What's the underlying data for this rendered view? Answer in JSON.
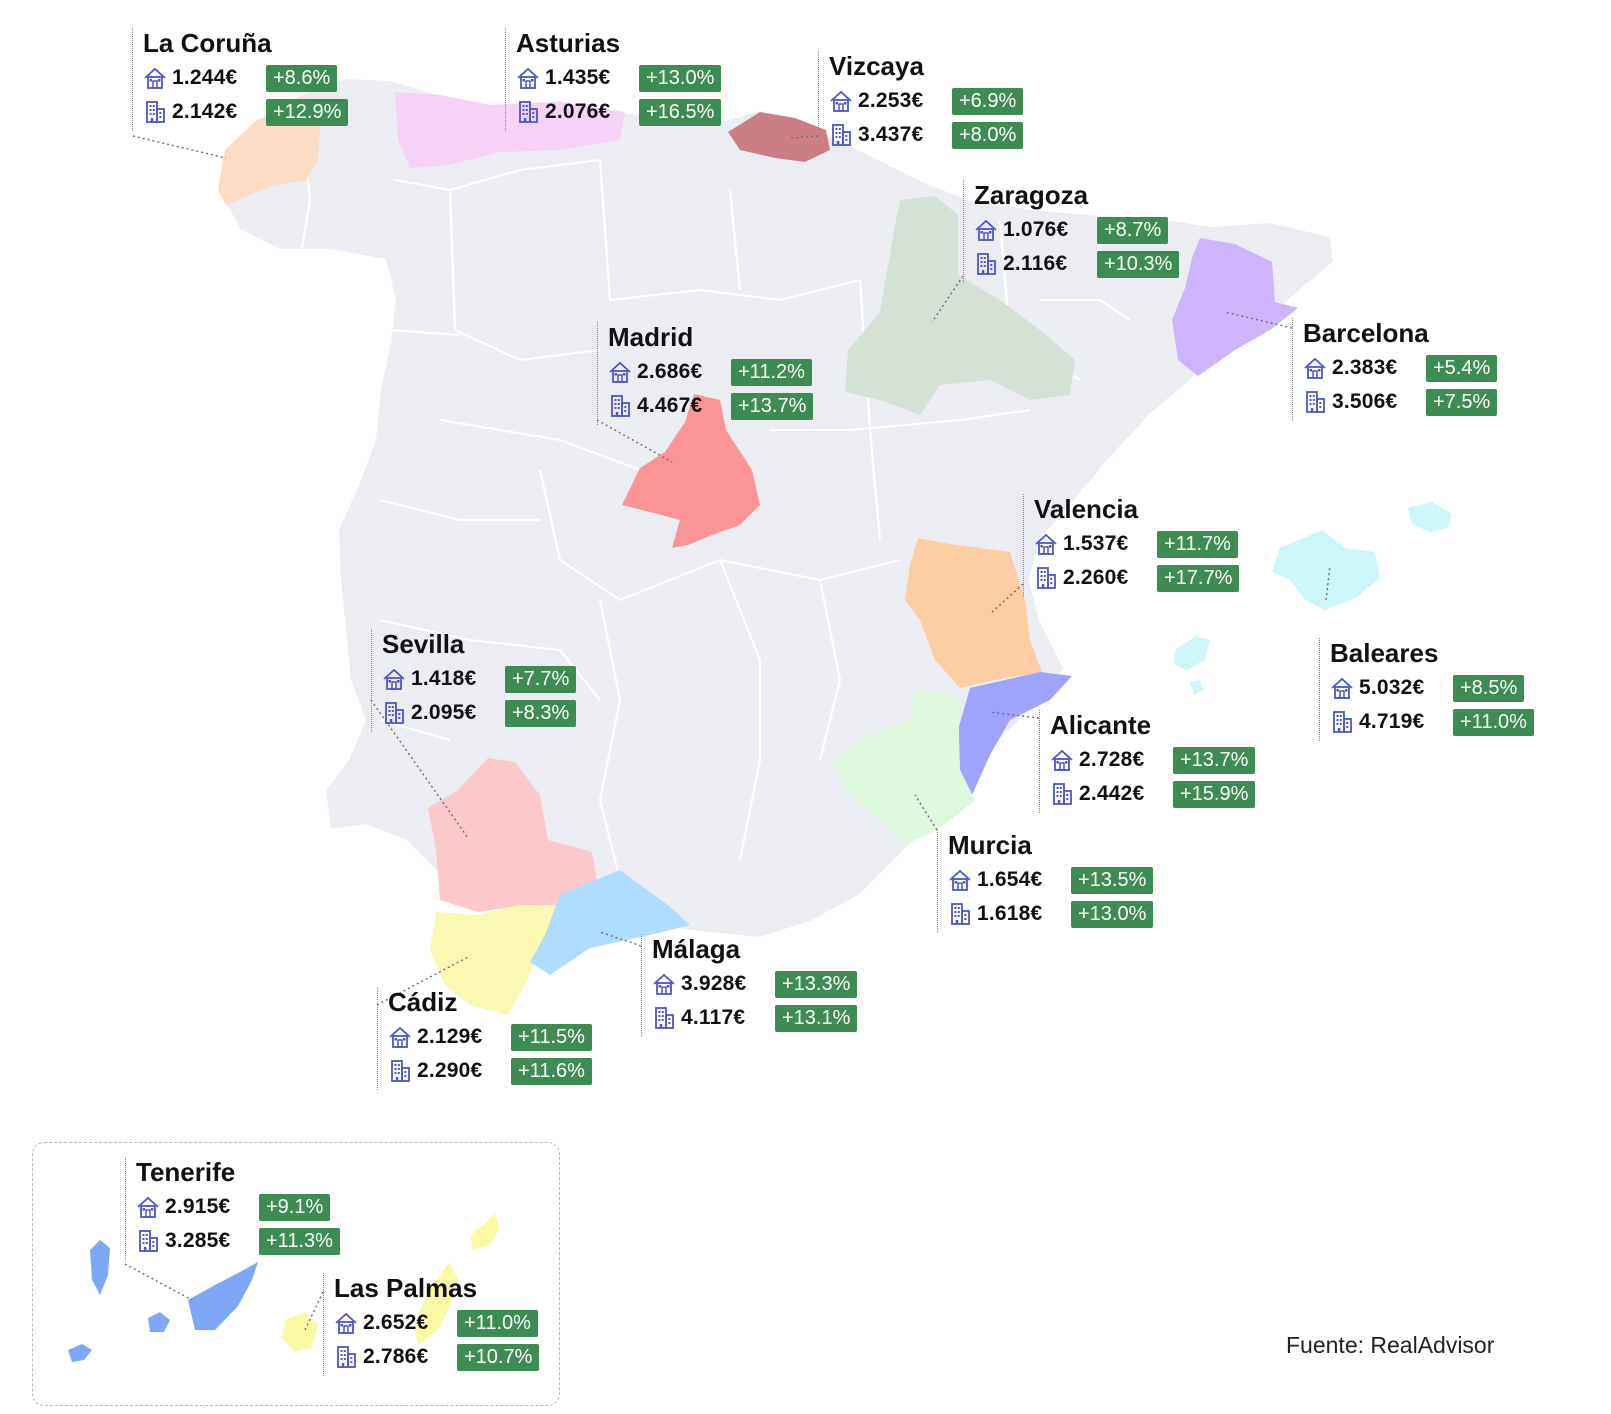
{
  "map": {
    "colors": {
      "land": "#ecedf2",
      "border": "#ffffff",
      "badge": "#3f8b54",
      "icon": "#4d55c9",
      "la_coruna": "#fcdcc4",
      "asturias": "#f6d2f6",
      "vizcaya": "#c97f84",
      "zaragoza": "#d3e2d4",
      "barcelona": "#cdb4fb",
      "madrid": "#fa9496",
      "valencia": "#fdcda3",
      "baleares": "#cdf6fa",
      "alicante": "#9ea3fb",
      "murcia": "#ddf8dc",
      "sevilla": "#fcc9cb",
      "cadiz": "#fbf8b4",
      "malaga": "#b0dcfd",
      "tenerife": "#7ea8f6",
      "las_palmas": "#fbf8a6"
    },
    "icons": {
      "house": "house-icon",
      "apartment": "apartment-icon"
    }
  },
  "regions": [
    {
      "id": "la-coruna",
      "name": "La Coruña",
      "house_price": "1.244€",
      "house_change": "+8.6%",
      "apt_price": "2.142€",
      "apt_change": "+12.9%"
    },
    {
      "id": "asturias",
      "name": "Asturias",
      "house_price": "1.435€",
      "house_change": "+13.0%",
      "apt_price": "2.076€",
      "apt_change": "+16.5%"
    },
    {
      "id": "vizcaya",
      "name": "Vizcaya",
      "house_price": "2.253€",
      "house_change": "+6.9%",
      "apt_price": "3.437€",
      "apt_change": "+8.0%"
    },
    {
      "id": "zaragoza",
      "name": "Zaragoza",
      "house_price": "1.076€",
      "house_change": "+8.7%",
      "apt_price": "2.116€",
      "apt_change": "+10.3%"
    },
    {
      "id": "barcelona",
      "name": "Barcelona",
      "house_price": "2.383€",
      "house_change": "+5.4%",
      "apt_price": "3.506€",
      "apt_change": "+7.5%"
    },
    {
      "id": "madrid",
      "name": "Madrid",
      "house_price": "2.686€",
      "house_change": "+11.2%",
      "apt_price": "4.467€",
      "apt_change": "+13.7%"
    },
    {
      "id": "valencia",
      "name": "Valencia",
      "house_price": "1.537€",
      "house_change": "+11.7%",
      "apt_price": "2.260€",
      "apt_change": "+17.7%"
    },
    {
      "id": "baleares",
      "name": "Baleares",
      "house_price": "5.032€",
      "house_change": "+8.5%",
      "apt_price": "4.719€",
      "apt_change": "+11.0%"
    },
    {
      "id": "sevilla",
      "name": "Sevilla",
      "house_price": "1.418€",
      "house_change": "+7.7%",
      "apt_price": "2.095€",
      "apt_change": "+8.3%"
    },
    {
      "id": "alicante",
      "name": "Alicante",
      "house_price": "2.728€",
      "house_change": "+13.7%",
      "apt_price": "2.442€",
      "apt_change": "+15.9%"
    },
    {
      "id": "murcia",
      "name": "Murcia",
      "house_price": "1.654€",
      "house_change": "+13.5%",
      "apt_price": "1.618€",
      "apt_change": "+13.0%"
    },
    {
      "id": "malaga",
      "name": "Málaga",
      "house_price": "3.928€",
      "house_change": "+13.3%",
      "apt_price": "4.117€",
      "apt_change": "+13.1%"
    },
    {
      "id": "cadiz",
      "name": "Cádiz",
      "house_price": "2.129€",
      "house_change": "+11.5%",
      "apt_price": "2.290€",
      "apt_change": "+11.6%"
    },
    {
      "id": "tenerife",
      "name": "Tenerife",
      "house_price": "2.915€",
      "house_change": "+9.1%",
      "apt_price": "3.285€",
      "apt_change": "+11.3%"
    },
    {
      "id": "las-palmas",
      "name": "Las Palmas",
      "house_price": "2.652€",
      "house_change": "+11.0%",
      "apt_price": "2.786€",
      "apt_change": "+10.7%"
    }
  ],
  "source": "Fuente: RealAdvisor"
}
